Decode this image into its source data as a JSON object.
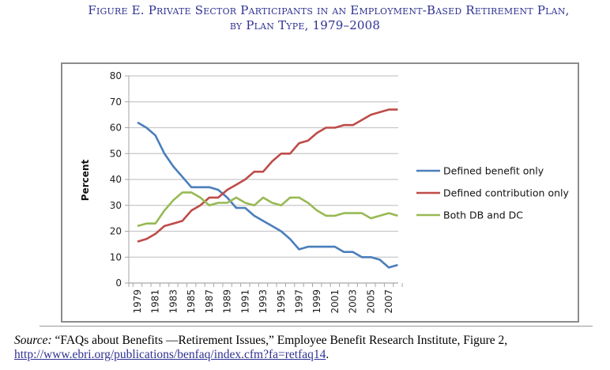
{
  "title": {
    "line1": "Figure E. Private Sector Participants in an Employment-Based Retirement Plan,",
    "line2": "by Plan Type, 1979–2008"
  },
  "source": {
    "label": "Source:",
    "text": " “FAQs about Benefits —Retirement Issues,” Employee Benefit Research Institute, Figure 2,",
    "link": "http://www.ebri.org/publications/benfaq/index.cfm?fa=retfaq14",
    "trailing": "."
  },
  "chart_data": {
    "type": "line",
    "title": "",
    "xlabel": "",
    "ylabel": "Percent",
    "ylim": [
      0,
      80
    ],
    "yticks": [
      0,
      10,
      20,
      30,
      40,
      50,
      60,
      70,
      80
    ],
    "grid": true,
    "legend_position": "right",
    "x": [
      1979,
      1980,
      1981,
      1982,
      1983,
      1984,
      1985,
      1986,
      1987,
      1988,
      1989,
      1990,
      1991,
      1992,
      1993,
      1994,
      1995,
      1996,
      1997,
      1998,
      1999,
      2000,
      2001,
      2002,
      2003,
      2004,
      2005,
      2006,
      2007,
      2008
    ],
    "xtick_labels": [
      "1979",
      "1981",
      "1983",
      "1985",
      "1987",
      "1989",
      "1991",
      "1993",
      "1995",
      "1997",
      "1999",
      "2001",
      "2003",
      "2005",
      "2007"
    ],
    "series": [
      {
        "name": "Defined benefit only",
        "color": "#4a7ebb",
        "values": [
          62,
          60,
          57,
          50,
          45,
          41,
          37,
          37,
          37,
          36,
          33,
          29,
          29,
          26,
          24,
          22,
          20,
          17,
          13,
          14,
          14,
          14,
          14,
          12,
          12,
          10,
          10,
          9,
          6,
          7
        ]
      },
      {
        "name": "Defined contribution only",
        "color": "#be4b48",
        "values": [
          16,
          17,
          19,
          22,
          23,
          24,
          28,
          30,
          33,
          33,
          36,
          38,
          40,
          43,
          43,
          47,
          50,
          50,
          54,
          55,
          58,
          60,
          60,
          61,
          61,
          63,
          65,
          66,
          67,
          67
        ]
      },
      {
        "name": "Both DB and DC",
        "color": "#98b954",
        "values": [
          22,
          23,
          23,
          28,
          32,
          35,
          35,
          33,
          30,
          31,
          31,
          33,
          31,
          30,
          33,
          31,
          30,
          33,
          33,
          31,
          28,
          26,
          26,
          27,
          27,
          27,
          25,
          26,
          27,
          26
        ]
      }
    ]
  }
}
